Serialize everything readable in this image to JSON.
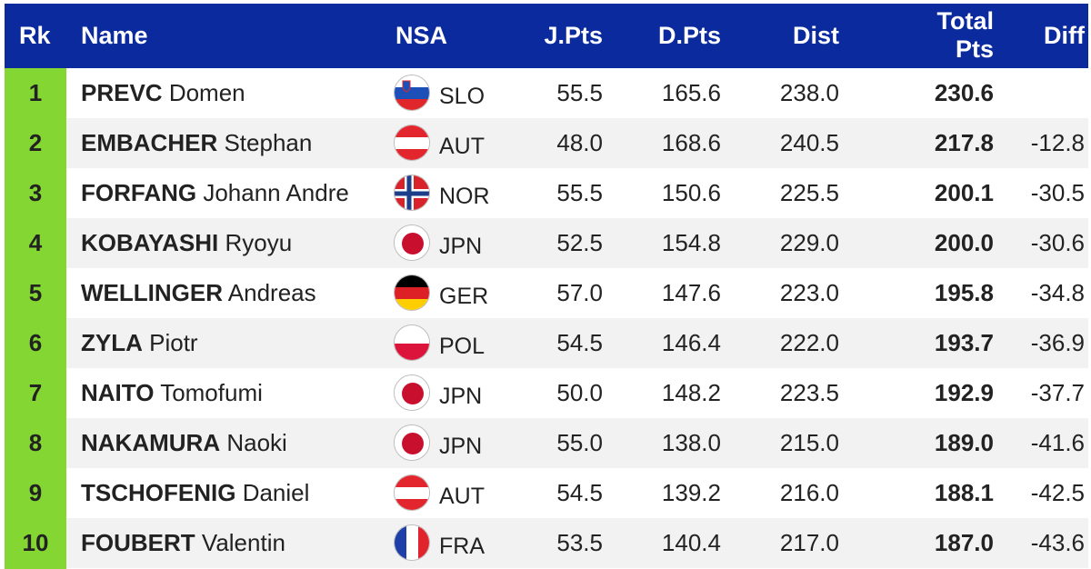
{
  "headers": {
    "rk": "Rk",
    "name": "Name",
    "nsa": "NSA",
    "jpts": "J.Pts",
    "dpts": "D.Pts",
    "dist": "Dist",
    "total_line1": "Total",
    "total_line2": "Pts",
    "diff": "Diff"
  },
  "colors": {
    "header_bg": "#0a2a9e",
    "rank_bg": "#84d633",
    "row_alt_bg": "#f2f2f2"
  },
  "rows": [
    {
      "rank": "1",
      "surname": "PREVC",
      "given": "Domen",
      "nsa": "SLO",
      "flag": "slovenia-flag-icon",
      "jpts": "55.5",
      "dpts": "165.6",
      "dist": "238.0",
      "total": "230.6",
      "diff": ""
    },
    {
      "rank": "2",
      "surname": "EMBACHER",
      "given": "Stephan",
      "nsa": "AUT",
      "flag": "austria-flag-icon",
      "jpts": "48.0",
      "dpts": "168.6",
      "dist": "240.5",
      "total": "217.8",
      "diff": "-12.8"
    },
    {
      "rank": "3",
      "surname": "FORFANG",
      "given": "Johann Andre",
      "nsa": "NOR",
      "flag": "norway-flag-icon",
      "jpts": "55.5",
      "dpts": "150.6",
      "dist": "225.5",
      "total": "200.1",
      "diff": "-30.5"
    },
    {
      "rank": "4",
      "surname": "KOBAYASHI",
      "given": "Ryoyu",
      "nsa": "JPN",
      "flag": "japan-flag-icon",
      "jpts": "52.5",
      "dpts": "154.8",
      "dist": "229.0",
      "total": "200.0",
      "diff": "-30.6"
    },
    {
      "rank": "5",
      "surname": "WELLINGER",
      "given": "Andreas",
      "nsa": "GER",
      "flag": "germany-flag-icon",
      "jpts": "57.0",
      "dpts": "147.6",
      "dist": "223.0",
      "total": "195.8",
      "diff": "-34.8"
    },
    {
      "rank": "6",
      "surname": "ZYLA",
      "given": "Piotr",
      "nsa": "POL",
      "flag": "poland-flag-icon",
      "jpts": "54.5",
      "dpts": "146.4",
      "dist": "222.0",
      "total": "193.7",
      "diff": "-36.9"
    },
    {
      "rank": "7",
      "surname": "NAITO",
      "given": "Tomofumi",
      "nsa": "JPN",
      "flag": "japan-flag-icon",
      "jpts": "50.0",
      "dpts": "148.2",
      "dist": "223.5",
      "total": "192.9",
      "diff": "-37.7"
    },
    {
      "rank": "8",
      "surname": "NAKAMURA",
      "given": "Naoki",
      "nsa": "JPN",
      "flag": "japan-flag-icon",
      "jpts": "55.0",
      "dpts": "138.0",
      "dist": "215.0",
      "total": "189.0",
      "diff": "-41.6"
    },
    {
      "rank": "9",
      "surname": "TSCHOFENIG",
      "given": "Daniel",
      "nsa": "AUT",
      "flag": "austria-flag-icon",
      "jpts": "54.5",
      "dpts": "139.2",
      "dist": "216.0",
      "total": "188.1",
      "diff": "-42.5"
    },
    {
      "rank": "10",
      "surname": "FOUBERT",
      "given": "Valentin",
      "nsa": "FRA",
      "flag": "france-flag-icon",
      "jpts": "53.5",
      "dpts": "140.4",
      "dist": "217.0",
      "total": "187.0",
      "diff": "-43.6"
    }
  ]
}
